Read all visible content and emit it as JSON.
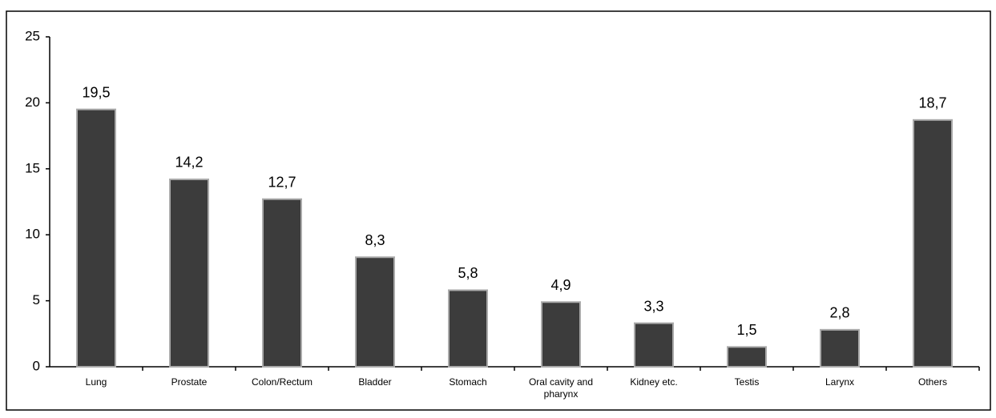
{
  "chart_data": {
    "type": "bar",
    "categories": [
      "Lung",
      "Prostate",
      "Colon/Rectum",
      "Bladder",
      "Stomach",
      "Oral cavity and pharynx",
      "Kidney etc.",
      "Testis",
      "Larynx",
      "Others"
    ],
    "values": [
      19.5,
      14.2,
      12.7,
      8.3,
      5.8,
      4.9,
      3.3,
      1.5,
      2.8,
      18.7
    ],
    "value_labels": [
      "19,5",
      "14,2",
      "12,7",
      "8,3",
      "5,8",
      "4,9",
      "3,3",
      "1,5",
      "2,8",
      "18,7"
    ],
    "color": "#3c3c3c",
    "ylim": [
      0,
      25
    ],
    "yticks": [
      0,
      5,
      10,
      15,
      20,
      25
    ],
    "grid": false
  }
}
